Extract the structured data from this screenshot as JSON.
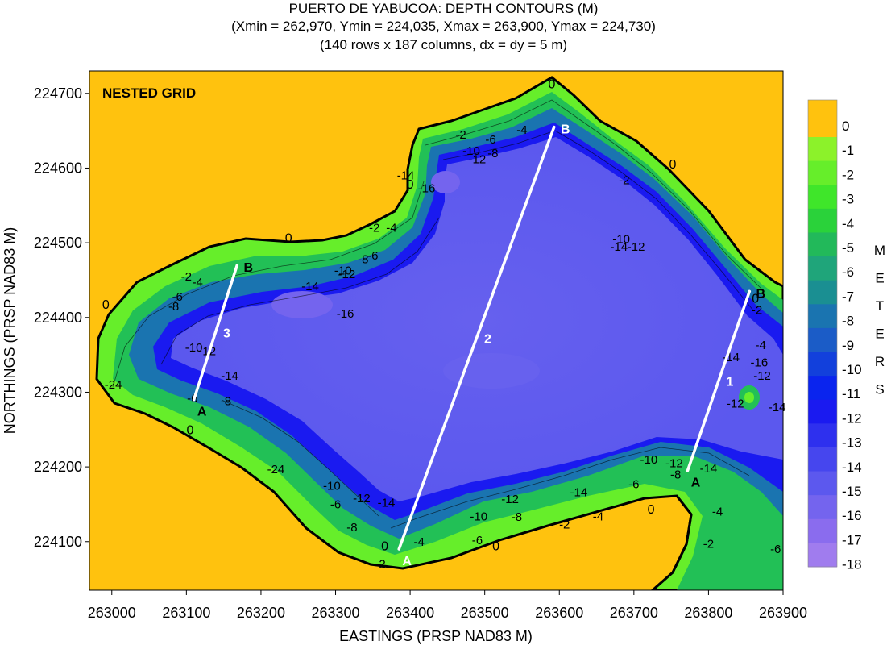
{
  "title_lines": [
    "PUERTO DE YABUCOA: DEPTH CONTOURS  (M)",
    "(Xmin = 262,970, Ymin = 224,035, Xmax = 263,900, Ymax = 224,730)",
    "(140 rows x 187 columns, dx = dy = 5 m)"
  ],
  "colors": {
    "land": "#FFC20E",
    "contour_line": "#000000",
    "transect": "#FFFFFF"
  },
  "chart_data": {
    "type": "heatmap",
    "title": "PUERTO DE YABUCOA: DEPTH CONTOURS  (M)",
    "xlabel": "EASTINGS (PRSP NAD83 M)",
    "ylabel": "NORTHINGS (PRSP NAD83 M)",
    "xlim": [
      262970,
      263900
    ],
    "ylim": [
      224035,
      224730
    ],
    "x_ticks": [
      263000,
      263100,
      263200,
      263300,
      263400,
      263500,
      263600,
      263700,
      263800,
      263900
    ],
    "y_ticks": [
      224100,
      224200,
      224300,
      224400,
      224500,
      224600,
      224700
    ],
    "annotation": "NESTED GRID",
    "colorbar": {
      "unit_letters": [
        "M",
        "E",
        "T",
        "E",
        "R",
        "S"
      ],
      "levels": [
        {
          "label": "0",
          "color": "#FFC20E"
        },
        {
          "label": "-1",
          "color": "#8CF22A"
        },
        {
          "label": "-2",
          "color": "#66EE2A"
        },
        {
          "label": "-3",
          "color": "#3FE62A"
        },
        {
          "label": "-4",
          "color": "#2AD23A"
        },
        {
          "label": "-5",
          "color": "#22B95A"
        },
        {
          "label": "-6",
          "color": "#1FA57A"
        },
        {
          "label": "-7",
          "color": "#1A8F92"
        },
        {
          "label": "-8",
          "color": "#1A74B0"
        },
        {
          "label": "-9",
          "color": "#1B5CC7"
        },
        {
          "label": "-10",
          "color": "#1240DC"
        },
        {
          "label": "-11",
          "color": "#0A24EE"
        },
        {
          "label": "-12",
          "color": "#1A1AF0"
        },
        {
          "label": "-13",
          "color": "#2E30EE"
        },
        {
          "label": "-14",
          "color": "#4646EE"
        },
        {
          "label": "-15",
          "color": "#5C58EE"
        },
        {
          "label": "-16",
          "color": "#7464EE"
        },
        {
          "label": "-17",
          "color": "#8A6CEE"
        },
        {
          "label": "-18",
          "color": "#A07CEE"
        }
      ]
    },
    "transects": [
      {
        "id": "1",
        "start_label": "A",
        "end_label": "B",
        "start": [
          263772,
          224195
        ],
        "end": [
          263855,
          224435
        ]
      },
      {
        "id": "2",
        "start_label": "A",
        "end_label": "B",
        "start": [
          263385,
          224090
        ],
        "end": [
          263593,
          224655
        ]
      },
      {
        "id": "3",
        "start_label": "A",
        "end_label": "B",
        "start": [
          263110,
          224290
        ],
        "end": [
          263168,
          224470
        ]
      }
    ],
    "zero_contour_labels": [
      {
        "text": "0",
        "x": 263590,
        "y": 224712
      },
      {
        "text": "0",
        "x": 263237,
        "y": 224506
      },
      {
        "text": "0",
        "x": 262992,
        "y": 224417
      },
      {
        "text": "0",
        "x": 263105,
        "y": 224249
      },
      {
        "text": "0",
        "x": 263366,
        "y": 224094
      },
      {
        "text": "0",
        "x": 263515,
        "y": 224094
      },
      {
        "text": "0",
        "x": 263400,
        "y": 224578
      },
      {
        "text": "0",
        "x": 263752,
        "y": 224605
      },
      {
        "text": "0",
        "x": 263723,
        "y": 224143
      },
      {
        "text": "0",
        "x": 263863,
        "y": 224425
      }
    ],
    "depth_labels": [
      {
        "text": "-2",
        "x": 263468,
        "y": 224645
      },
      {
        "text": "-6",
        "x": 263508,
        "y": 224638
      },
      {
        "text": "-4",
        "x": 263550,
        "y": 224651
      },
      {
        "text": "-10",
        "x": 263482,
        "y": 224623
      },
      {
        "text": "-8",
        "x": 263511,
        "y": 224620
      },
      {
        "text": "-12",
        "x": 263490,
        "y": 224612
      },
      {
        "text": "-14",
        "x": 263394,
        "y": 224590
      },
      {
        "text": "-16",
        "x": 263422,
        "y": 224573
      },
      {
        "text": "-2",
        "x": 263687,
        "y": 224584
      },
      {
        "text": "-2",
        "x": 263352,
        "y": 224520
      },
      {
        "text": "-4",
        "x": 263375,
        "y": 224520
      },
      {
        "text": "-10",
        "x": 263310,
        "y": 224463
      },
      {
        "text": "-12",
        "x": 263315,
        "y": 224458
      },
      {
        "text": "-8",
        "x": 263337,
        "y": 224478
      },
      {
        "text": "-6",
        "x": 263350,
        "y": 224483
      },
      {
        "text": "-14",
        "x": 263266,
        "y": 224442
      },
      {
        "text": "-2",
        "x": 263100,
        "y": 224455
      },
      {
        "text": "-4",
        "x": 263115,
        "y": 224447
      },
      {
        "text": "-8",
        "x": 263083,
        "y": 224415
      },
      {
        "text": "-6",
        "x": 263088,
        "y": 224428
      },
      {
        "text": "-16",
        "x": 263313,
        "y": 224405
      },
      {
        "text": "-10",
        "x": 263110,
        "y": 224360
      },
      {
        "text": "-12",
        "x": 263128,
        "y": 224355
      },
      {
        "text": "-14",
        "x": 263158,
        "y": 224322
      },
      {
        "text": "-24",
        "x": 263002,
        "y": 224310
      },
      {
        "text": "-6",
        "x": 263108,
        "y": 224292
      },
      {
        "text": "-8",
        "x": 263153,
        "y": 224288
      },
      {
        "text": "-10",
        "x": 263683,
        "y": 224505
      },
      {
        "text": "-12",
        "x": 263703,
        "y": 224495
      },
      {
        "text": "-14",
        "x": 263680,
        "y": 224495
      },
      {
        "text": "-14",
        "x": 263830,
        "y": 224347
      },
      {
        "text": "-16",
        "x": 263868,
        "y": 224340
      },
      {
        "text": "-12",
        "x": 263872,
        "y": 224322
      },
      {
        "text": "-4",
        "x": 263870,
        "y": 224363
      },
      {
        "text": "-2",
        "x": 263865,
        "y": 224410
      },
      {
        "text": "-12",
        "x": 263836,
        "y": 224285
      },
      {
        "text": "-14",
        "x": 263892,
        "y": 224280
      },
      {
        "text": "-10",
        "x": 263720,
        "y": 224210
      },
      {
        "text": "-12",
        "x": 263754,
        "y": 224205
      },
      {
        "text": "-8",
        "x": 263756,
        "y": 224190
      },
      {
        "text": "-14",
        "x": 263800,
        "y": 224198
      },
      {
        "text": "-6",
        "x": 263700,
        "y": 224177
      },
      {
        "text": "-14",
        "x": 263626,
        "y": 224166
      },
      {
        "text": "-12",
        "x": 263534,
        "y": 224157
      },
      {
        "text": "-10",
        "x": 263492,
        "y": 224134
      },
      {
        "text": "-8",
        "x": 263543,
        "y": 224133
      },
      {
        "text": "-6",
        "x": 263490,
        "y": 224102
      },
      {
        "text": "-2",
        "x": 263607,
        "y": 224123
      },
      {
        "text": "-4",
        "x": 263652,
        "y": 224134
      },
      {
        "text": "-4",
        "x": 263412,
        "y": 224100
      },
      {
        "text": "-2",
        "x": 263360,
        "y": 224070
      },
      {
        "text": "-14",
        "x": 263368,
        "y": 224152
      },
      {
        "text": "-12",
        "x": 263335,
        "y": 224158
      },
      {
        "text": "-10",
        "x": 263295,
        "y": 224175
      },
      {
        "text": "-6",
        "x": 263300,
        "y": 224150
      },
      {
        "text": "-8",
        "x": 263322,
        "y": 224119
      },
      {
        "text": "-24",
        "x": 263220,
        "y": 224197
      },
      {
        "text": "-4",
        "x": 263812,
        "y": 224140
      },
      {
        "text": "-2",
        "x": 263800,
        "y": 224097
      },
      {
        "text": "-6",
        "x": 263890,
        "y": 224090
      }
    ]
  }
}
